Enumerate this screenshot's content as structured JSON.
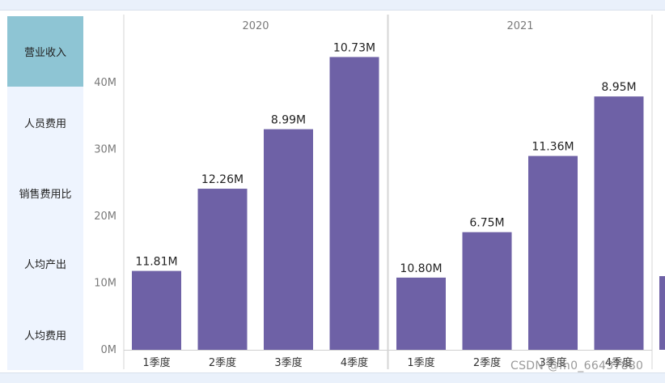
{
  "sidebar": {
    "items": [
      {
        "label": "营业收入",
        "active": true
      },
      {
        "label": "人员费用",
        "active": false
      },
      {
        "label": "销售费用比",
        "active": false
      },
      {
        "label": "人均产出",
        "active": false
      },
      {
        "label": "人均费用",
        "active": false
      }
    ]
  },
  "watermark": "CSDN @m0_66437880",
  "colors": {
    "bar": "#6e61a6",
    "active_tab": "#8ec5d4",
    "sidebar_bg": "#eef4fe",
    "panel_border": "#d6d6d6",
    "axis_text": "#7a7a7a"
  },
  "chart_data": {
    "type": "bar",
    "panels": [
      {
        "name": "2020",
        "categories": [
          "1季度",
          "2季度",
          "3季度",
          "4季度"
        ],
        "values": [
          11.8,
          24.1,
          33.0,
          43.8
        ],
        "data_labels": [
          "11.81M",
          "12.26M",
          "8.99M",
          "10.73M"
        ]
      },
      {
        "name": "2021",
        "categories": [
          "1季度",
          "2季度",
          "3季度",
          "4季度"
        ],
        "values": [
          10.8,
          17.6,
          29.0,
          37.9
        ],
        "data_labels": [
          "10.80M",
          "6.75M",
          "11.36M",
          "8.95M"
        ]
      }
    ],
    "y_ticks": [
      "0M",
      "10M",
      "20M",
      "30M",
      "40M"
    ],
    "ylim": [
      0,
      47
    ],
    "grid": false,
    "xlabel": "",
    "ylabel": ""
  }
}
